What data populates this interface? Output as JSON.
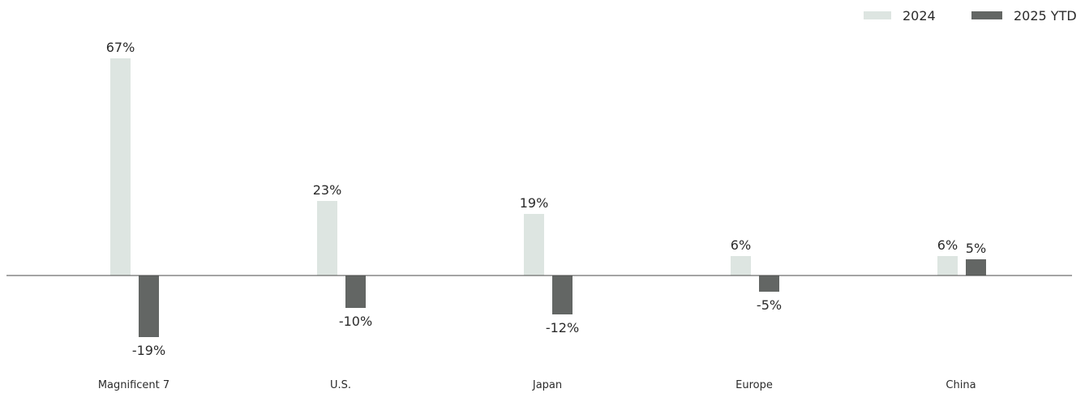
{
  "chart_data": {
    "type": "bar",
    "categories": [
      "Magnificent 7",
      "U.S.",
      "Japan",
      "Europe",
      "China"
    ],
    "series": [
      {
        "name": "2024",
        "values": [
          67,
          23,
          19,
          6,
          6
        ],
        "labels": [
          "67%",
          "23%",
          "19%",
          "6%",
          "6%"
        ],
        "color": "#dde5e1"
      },
      {
        "name": "2025 YTD",
        "values": [
          -19,
          -10,
          -12,
          -5,
          5
        ],
        "labels": [
          "-19%",
          "-10%",
          "-12%",
          "-5%",
          "5%"
        ],
        "color": "#636664"
      }
    ],
    "title": "",
    "xlabel": "",
    "ylabel": "",
    "ylim": [
      -21,
      70
    ],
    "grid": false,
    "legend": "top-right",
    "unit": "%"
  }
}
